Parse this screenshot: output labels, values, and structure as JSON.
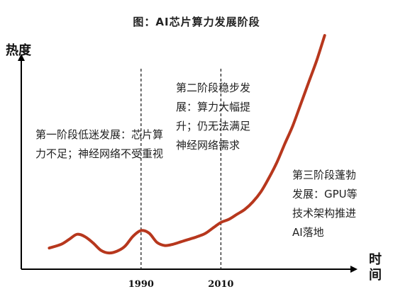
{
  "chart_data": {
    "type": "line",
    "title": "图：AI芯片算力发展阶段",
    "ylabel": "热度",
    "xlabel": "时间",
    "x_ticks": [
      "1990",
      "2010"
    ],
    "y_axis_numeric": false,
    "grid": false,
    "legend": "none",
    "series": [
      {
        "color": "#b7371d",
        "points": [
          [
            1967,
            3.4
          ],
          [
            1970,
            4.0
          ],
          [
            1972,
            4.8
          ],
          [
            1974,
            5.6
          ],
          [
            1976,
            5.2
          ],
          [
            1978,
            4.2
          ],
          [
            1980,
            3.0
          ],
          [
            1982,
            2.6
          ],
          [
            1984,
            2.9
          ],
          [
            1986,
            3.7
          ],
          [
            1988,
            5.3
          ],
          [
            1990,
            6.2
          ],
          [
            1992,
            5.8
          ],
          [
            1994,
            4.3
          ],
          [
            1996,
            3.8
          ],
          [
            1998,
            4.0
          ],
          [
            2000,
            4.4
          ],
          [
            2002,
            4.8
          ],
          [
            2004,
            5.2
          ],
          [
            2006,
            5.7
          ],
          [
            2008,
            6.6
          ],
          [
            2010,
            7.5
          ],
          [
            2012,
            8.0
          ],
          [
            2014,
            8.8
          ],
          [
            2016,
            9.6
          ],
          [
            2018,
            10.8
          ],
          [
            2020,
            12.4
          ],
          [
            2022,
            14.6
          ],
          [
            2024,
            17.1
          ],
          [
            2026,
            20.1
          ],
          [
            2028,
            23.0
          ],
          [
            2030,
            26.5
          ],
          [
            2032,
            30.0
          ],
          [
            2034,
            33.5
          ],
          [
            2036,
            37.5
          ]
        ]
      }
    ],
    "stage_dividers": [
      1990,
      2010
    ],
    "xlim": [
      1960,
      2046
    ],
    "ylim": [
      0,
      40
    ],
    "annotations": [
      "第一阶段低迷发展：芯片算力不足；神经网络不受重视",
      "第二阶段稳步发展：算力大幅提升；仍无法满足神经网络需求",
      "第三阶段蓬勃发展：GPU等技术架构推进AI落地"
    ]
  },
  "colors": {
    "line": "#b7371d",
    "axis": "#000000",
    "divider": "#222222",
    "text": "#222222"
  }
}
